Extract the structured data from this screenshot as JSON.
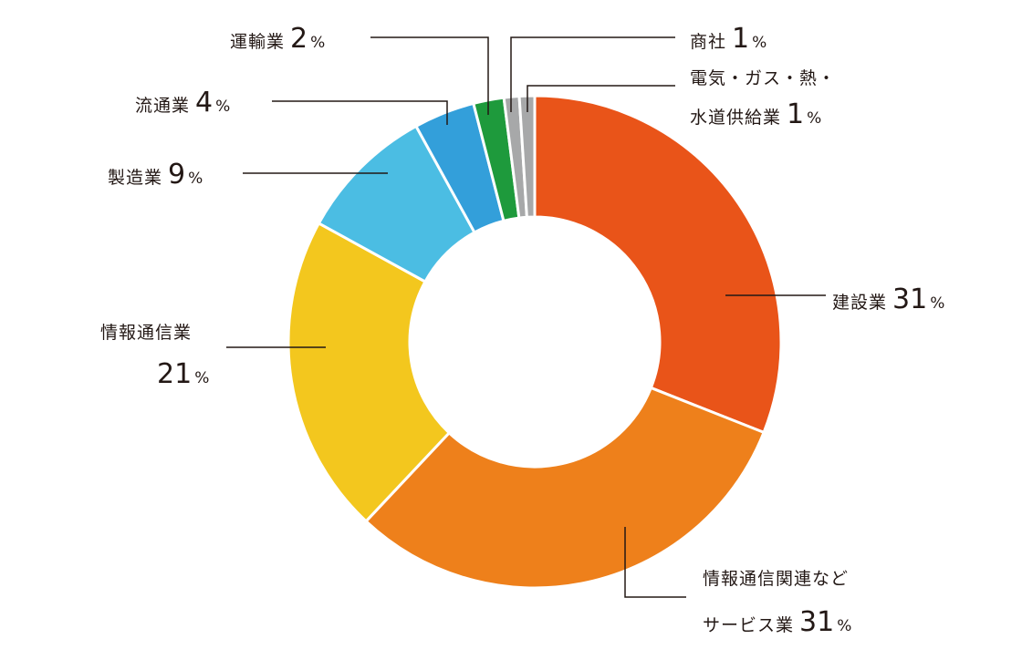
{
  "chart_data": {
    "type": "pie",
    "variant": "donut",
    "start_angle_deg": 0,
    "direction": "clockwise",
    "slices": [
      {
        "label": "建設業",
        "value": 31,
        "color": "#E95419"
      },
      {
        "label": "情報通信関連などサービス業",
        "lines": [
          "情報通信関連など",
          "サービス業"
        ],
        "value": 31,
        "color": "#EE801B"
      },
      {
        "label": "情報通信業",
        "value": 21,
        "color": "#F3C71E"
      },
      {
        "label": "製造業",
        "value": 9,
        "color": "#4BBDE3"
      },
      {
        "label": "流通業",
        "value": 4,
        "color": "#339FDA"
      },
      {
        "label": "運輸業",
        "value": 2,
        "color": "#1E9A3C"
      },
      {
        "label": "商社",
        "value": 1,
        "color": "#A7A8A9"
      },
      {
        "label": "電気・ガス・熱・水道供給業",
        "lines": [
          "電気・ガス・熱・",
          "水道供給業"
        ],
        "value": 1,
        "color": "#A7A8A9"
      }
    ],
    "unit": "%",
    "leader_line_color": "#231815"
  }
}
